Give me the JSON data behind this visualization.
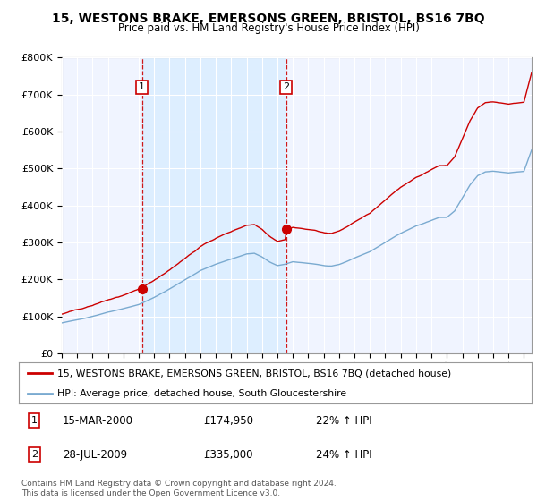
{
  "title": "15, WESTONS BRAKE, EMERSONS GREEN, BRISTOL, BS16 7BQ",
  "subtitle": "Price paid vs. HM Land Registry's House Price Index (HPI)",
  "legend_line1": "15, WESTONS BRAKE, EMERSONS GREEN, BRISTOL, BS16 7BQ (detached house)",
  "legend_line2": "HPI: Average price, detached house, South Gloucestershire",
  "footnote": "Contains HM Land Registry data © Crown copyright and database right 2024.\nThis data is licensed under the Open Government Licence v3.0.",
  "annotation1_date": "15-MAR-2000",
  "annotation1_price": "£174,950",
  "annotation1_hpi": "22% ↑ HPI",
  "annotation2_date": "28-JUL-2009",
  "annotation2_price": "£335,000",
  "annotation2_hpi": "24% ↑ HPI",
  "sale1_x": 2000.21,
  "sale1_y": 174950,
  "sale2_x": 2009.57,
  "sale2_y": 335000,
  "vline1_x": 2000.21,
  "vline2_x": 2009.57,
  "ylim": [
    0,
    800000
  ],
  "xlim": [
    1995.0,
    2025.5
  ],
  "yticks": [
    0,
    100000,
    200000,
    300000,
    400000,
    500000,
    600000,
    700000,
    800000
  ],
  "ytick_labels": [
    "£0",
    "£100K",
    "£200K",
    "£300K",
    "£400K",
    "£500K",
    "£600K",
    "£700K",
    "£800K"
  ],
  "xticks": [
    1995,
    1996,
    1997,
    1998,
    1999,
    2000,
    2001,
    2002,
    2003,
    2004,
    2005,
    2006,
    2007,
    2008,
    2009,
    2010,
    2011,
    2012,
    2013,
    2014,
    2015,
    2016,
    2017,
    2018,
    2019,
    2020,
    2021,
    2022,
    2023,
    2024,
    2025
  ],
  "property_color": "#cc0000",
  "hpi_color": "#7aaad0",
  "shade_color": "#ddeeff",
  "background_color": "#f0f4ff",
  "annotation_box_color": "#cc0000",
  "grid_color": "#cccccc",
  "shade_between_vlines": true
}
